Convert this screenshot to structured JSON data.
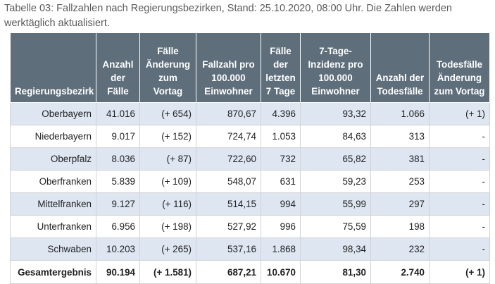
{
  "caption": "Tabelle 03: Fallzahlen nach Regierungsbezirken, Stand: 25.10.2020, 08:00 Uhr. Die Zahlen werden werktäglich aktualisiert.",
  "table": {
    "headers": [
      "Regierungsbezirk",
      "Anzahl der Fälle",
      "Fälle Änderung zum Vortag",
      "Fallzahl pro 100.000 Einwohner",
      "Fälle der letzten 7 Tage",
      "7-Tage-Inzidenz pro 100.000 Einwohner",
      "Anzahl der Todesfälle",
      "Todesfälle Änderung zum Vortag"
    ],
    "rows": [
      [
        "Oberbayern",
        "41.016",
        "(+ 654)",
        "870,67",
        "4.396",
        "93,32",
        "1.066",
        "(+ 1)"
      ],
      [
        "Niederbayern",
        "9.017",
        "(+ 152)",
        "724,74",
        "1.053",
        "84,63",
        "313",
        "-"
      ],
      [
        "Oberpfalz",
        "8.036",
        "(+ 87)",
        "722,60",
        "732",
        "65,82",
        "381",
        "-"
      ],
      [
        "Oberfranken",
        "5.839",
        "(+ 109)",
        "548,07",
        "631",
        "59,23",
        "253",
        "-"
      ],
      [
        "Mittelfranken",
        "9.127",
        "(+ 116)",
        "514,15",
        "994",
        "55,99",
        "297",
        "-"
      ],
      [
        "Unterfranken",
        "6.956",
        "(+ 198)",
        "527,92",
        "996",
        "75,59",
        "198",
        "-"
      ],
      [
        "Schwaben",
        "10.203",
        "(+ 265)",
        "537,16",
        "1.868",
        "98,34",
        "232",
        "-"
      ]
    ],
    "total": [
      "Gesamtergebnis",
      "90.194",
      "(+ 1.581)",
      "687,21",
      "10.670",
      "81,30",
      "2.740",
      "(+ 1)"
    ]
  }
}
